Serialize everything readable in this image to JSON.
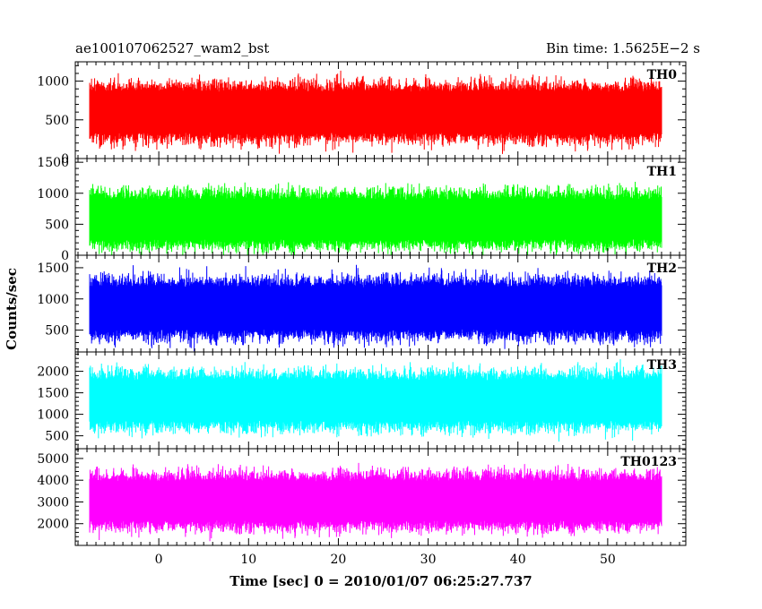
{
  "header": {
    "title": "ae100107062527_wam2_bst",
    "bin_time": "Bin time: 1.5625E−2 s"
  },
  "chart_data": {
    "type": "line",
    "xlabel": "Time [sec] 0 = 2010/01/07 06:25:27.737",
    "ylabel": "Counts/sec",
    "xlim": [
      -9.3,
      58.7
    ],
    "x_data_range": [
      -7.7,
      56.0
    ],
    "x_ticks": [
      0,
      10,
      20,
      30,
      40,
      50
    ],
    "grid": false,
    "panels": [
      {
        "label": "TH0",
        "color": "#ff0000",
        "ylim": [
          0,
          1250
        ],
        "yticks": [
          0,
          500,
          1000
        ],
        "typical_range": [
          250,
          950
        ],
        "extreme_range": [
          0,
          1250
        ]
      },
      {
        "label": "TH1",
        "color": "#00ff00",
        "ylim": [
          0,
          1560
        ],
        "yticks": [
          0,
          500,
          1000,
          1500
        ],
        "typical_range": [
          150,
          1000
        ],
        "extreme_range": [
          0,
          1560
        ]
      },
      {
        "label": "TH2",
        "color": "#0000ff",
        "ylim": [
          150,
          1700
        ],
        "yticks": [
          500,
          1000,
          1500
        ],
        "typical_range": [
          400,
          1300
        ],
        "extreme_range": [
          150,
          1700
        ]
      },
      {
        "label": "TH3",
        "color": "#00ffff",
        "ylim": [
          200,
          2450
        ],
        "yticks": [
          500,
          1000,
          1500,
          2000
        ],
        "typical_range": [
          700,
          1950
        ],
        "extreme_range": [
          200,
          2450
        ]
      },
      {
        "label": "TH0123",
        "color": "#ff00ff",
        "ylim": [
          1000,
          5450
        ],
        "yticks": [
          2000,
          3000,
          4000,
          5000
        ],
        "typical_range": [
          1850,
          4250
        ],
        "extreme_range": [
          1000,
          5300
        ]
      }
    ]
  }
}
